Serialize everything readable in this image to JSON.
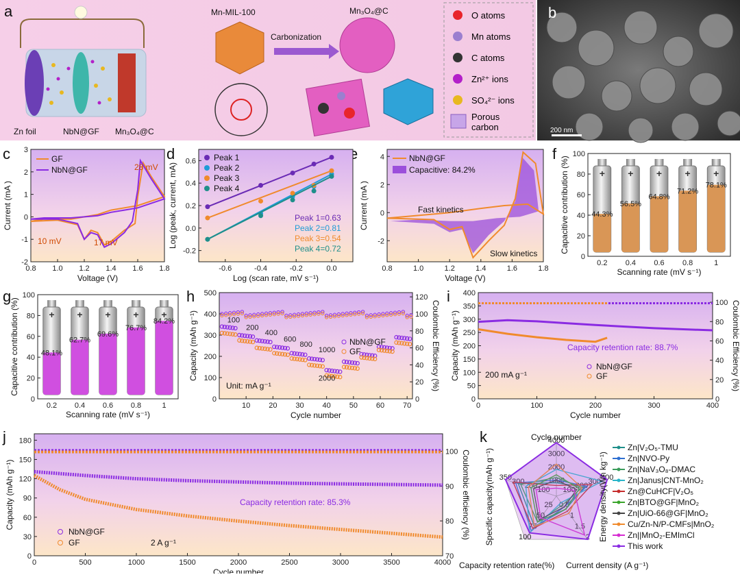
{
  "panel_labels": [
    "a",
    "b",
    "c",
    "d",
    "e",
    "f",
    "g",
    "h",
    "i",
    "j",
    "k"
  ],
  "colors": {
    "orange": "#f08a2c",
    "purple": "#8a2be2",
    "blue": "#1f9bd7",
    "teal": "#1f8f8a",
    "violet": "#6a2bb5",
    "bg_pink": "#f3c8e6",
    "bg_peach": "#fbe3c8"
  },
  "panel_a": {
    "labels": {
      "mof": "Mn-MIL-100",
      "arrow": "Carbonization",
      "product": "Mn₃O₄@C",
      "zn": "Zn foil",
      "nbn": "NbN@GF",
      "cathode": "Mn₃O₄@C"
    },
    "legend": [
      {
        "label": "O atoms",
        "color": "#e8242b",
        "icon": "circle"
      },
      {
        "label": "Mn atoms",
        "color": "#9b7fcf",
        "icon": "circle"
      },
      {
        "label": "C atoms",
        "color": "#333333",
        "icon": "circle"
      },
      {
        "label": "Zn²⁺ ions",
        "color": "#b320c9",
        "icon": "circle"
      },
      {
        "label": "SO₄²⁻ ions",
        "color": "#e8b820",
        "icon": "circle"
      },
      {
        "label": "Porous carbon",
        "color": "#c7a5e8",
        "icon": "square"
      }
    ]
  },
  "panel_b": {
    "scale": "200 nm"
  },
  "chart_data": [
    {
      "panel": "c",
      "type": "line",
      "xlabel": "Voltage (V)",
      "ylabel": "Current (mA )",
      "xlim": [
        0.8,
        1.8
      ],
      "ylim": [
        -2,
        3
      ],
      "xticks": [
        "0.8",
        "1.0",
        "1.2",
        "1.4",
        "1.6",
        "1.8"
      ],
      "yticks": [
        "-2",
        "-1",
        "0",
        "1",
        "2",
        "3"
      ],
      "annotations": [
        "28 mV",
        "10 mV",
        "17 mV"
      ],
      "series": [
        {
          "name": "GF",
          "color": "#f08a2c",
          "x": [
            0.8,
            1.0,
            1.15,
            1.2,
            1.25,
            1.3,
            1.35,
            1.4,
            1.5,
            1.58,
            1.6,
            1.64,
            1.7,
            1.8,
            1.75,
            1.6,
            1.5,
            1.4,
            1.3,
            1.1,
            0.9,
            0.8
          ],
          "y": [
            -0.2,
            -0.15,
            -0.35,
            -1.0,
            -0.6,
            -0.7,
            -1.25,
            -1.1,
            -0.6,
            -0.3,
            0.9,
            2.4,
            1.8,
            0.9,
            0.8,
            0.5,
            0.4,
            0.3,
            0.1,
            -0.1,
            -0.1,
            -0.2
          ]
        },
        {
          "name": "NbN@GF",
          "color": "#8a2be2",
          "x": [
            0.8,
            1.0,
            1.15,
            1.2,
            1.25,
            1.3,
            1.35,
            1.4,
            1.5,
            1.56,
            1.6,
            1.62,
            1.7,
            1.8,
            1.75,
            1.6,
            1.5,
            1.4,
            1.3,
            1.1,
            0.9,
            0.8
          ],
          "y": [
            -0.1,
            -0.1,
            -0.3,
            -1.0,
            -0.7,
            -0.8,
            -1.35,
            -1.2,
            -0.7,
            -0.2,
            1.2,
            2.5,
            1.7,
            0.8,
            0.7,
            0.4,
            0.3,
            0.2,
            0.05,
            -0.05,
            -0.05,
            -0.1
          ]
        }
      ]
    },
    {
      "panel": "d",
      "type": "scatter",
      "xlabel": "Log (scan rate, mV s⁻¹)",
      "ylabel": "Log (peak, current, mA)",
      "xlim": [
        -0.75,
        0.12
      ],
      "ylim": [
        -0.3,
        0.7
      ],
      "xticks": [
        "-0.6",
        "-0.4",
        "-0.2",
        "0.0"
      ],
      "yticks": [
        "-0.2",
        "0.0",
        "0.2",
        "0.4",
        "0.6"
      ],
      "series": [
        {
          "name": "Peak 1",
          "color": "#6a2bb5",
          "fit": "Peak 1=0.63",
          "x": [
            -0.7,
            -0.4,
            -0.22,
            -0.1,
            0.0
          ],
          "y": [
            0.19,
            0.38,
            0.49,
            0.57,
            0.63
          ]
        },
        {
          "name": "Peak 2",
          "color": "#1f9bd7",
          "fit": "Peak 2=0.81",
          "x": [
            -0.7,
            -0.4,
            -0.22,
            -0.1,
            0.0
          ],
          "y": [
            -0.1,
            0.13,
            0.28,
            0.37,
            0.48
          ]
        },
        {
          "name": "Peak 3",
          "color": "#f08a2c",
          "fit": "Peak 3=0.54",
          "x": [
            -0.7,
            -0.4,
            -0.22,
            -0.1,
            0.0
          ],
          "y": [
            0.09,
            0.24,
            0.31,
            0.38,
            0.51
          ]
        },
        {
          "name": "Peak 4",
          "color": "#1f8f8a",
          "fit": "Peak 4=0.72",
          "x": [
            -0.7,
            -0.4,
            -0.22,
            -0.1,
            0.0
          ],
          "y": [
            -0.1,
            0.11,
            0.25,
            0.33,
            0.46
          ]
        }
      ]
    },
    {
      "panel": "e",
      "type": "area",
      "xlabel": "Voltage (V)",
      "ylabel": "Current (mA )",
      "xlim": [
        0.8,
        1.8
      ],
      "ylim": [
        -3.5,
        4.5
      ],
      "xticks": [
        "0.8",
        "1.0",
        "1.2",
        "1.4",
        "1.6",
        "1.8"
      ],
      "yticks": [
        "-2",
        "0",
        "2",
        "4"
      ],
      "legend": [
        "NbN@GF",
        "Capacitive: 84.2%"
      ],
      "annotations": [
        "Fast kinetics",
        "Slow kinetics"
      ]
    },
    {
      "panel": "f",
      "type": "bar",
      "xlabel": "Scanning rate (mV s⁻¹)",
      "ylabel": "Capacitive contribution (%)",
      "ylim": [
        0,
        100
      ],
      "yticks": [
        "0",
        "20",
        "40",
        "60",
        "80",
        "100"
      ],
      "categories": [
        "0.2",
        "0.4",
        "0.6",
        "0.8",
        "1"
      ],
      "values": [
        44.3,
        56.5,
        64.8,
        71.2,
        78.1
      ],
      "labels": [
        "44.3%",
        "56.5%",
        "64.8%",
        "71.2%",
        "78.1%"
      ],
      "fill_color": "#d99656"
    },
    {
      "panel": "g",
      "type": "bar",
      "xlabel": "Scanning rate (mV s⁻¹)",
      "ylabel": "Capacitive contribution (%)",
      "ylim": [
        0,
        100
      ],
      "yticks": [
        "0",
        "20",
        "40",
        "60",
        "80",
        "100"
      ],
      "categories": [
        "0.2",
        "0.4",
        "0.6",
        "0.8",
        "1"
      ],
      "values": [
        48.1,
        62.7,
        69.6,
        76.7,
        84.2
      ],
      "labels": [
        "48.1%",
        "62.7%",
        "69.6%",
        "76.7%",
        "84.2%"
      ],
      "fill_color": "#d04fe0"
    },
    {
      "panel": "h",
      "type": "scatter",
      "xlabel": "Cycle number",
      "ylabel": "Capacity (mAh g⁻¹)",
      "y2label": "Coulombic Efficiency (%)",
      "xlim": [
        0,
        72
      ],
      "ylim": [
        0,
        500
      ],
      "y2lim": [
        0,
        125
      ],
      "xticks": [
        "10",
        "20",
        "30",
        "40",
        "50",
        "60",
        "70"
      ],
      "yticks": [
        "0",
        "100",
        "200",
        "300",
        "400",
        "500"
      ],
      "y2ticks": [
        "0",
        "20",
        "40",
        "60",
        "80",
        "100",
        "120"
      ],
      "rate_labels": [
        "100",
        "200",
        "400",
        "600",
        "800",
        "1000",
        "2000"
      ],
      "unit_label": "Unit: mA g⁻¹",
      "series": [
        {
          "name": "NbN@GF",
          "color": "#8a2be2",
          "step_values": [
            340,
            300,
            275,
            245,
            215,
            190,
            135,
            175,
            210,
            245,
            290
          ]
        },
        {
          "name": "GF",
          "color": "#f08a2c",
          "step_values": [
            310,
            275,
            240,
            215,
            190,
            160,
            110,
            150,
            195,
            230,
            265
          ]
        }
      ]
    },
    {
      "panel": "i",
      "type": "line",
      "xlabel": "Cycle number",
      "ylabel": "Capacity (mAh g⁻¹)",
      "y2label": "Coulombic Efficiency (%)",
      "xlim": [
        0,
        400
      ],
      "ylim": [
        0,
        400
      ],
      "y2lim": [
        0,
        110
      ],
      "xticks": [
        "0",
        "100",
        "200",
        "300",
        "400"
      ],
      "yticks": [
        "0",
        "50",
        "100",
        "150",
        "200",
        "250",
        "300",
        "350",
        "400"
      ],
      "y2ticks": [
        "0",
        "20",
        "40",
        "60",
        "80",
        "100"
      ],
      "current_label": "200 mA g⁻¹",
      "annotation": "Capacity retention rate: 88.7%",
      "series": [
        {
          "name": "NbN@GF",
          "color": "#8a2be2",
          "x": [
            0,
            50,
            100,
            150,
            200,
            250,
            300,
            350,
            400
          ],
          "y": [
            290,
            296,
            292,
            285,
            278,
            272,
            266,
            262,
            258
          ]
        },
        {
          "name": "GF",
          "color": "#f08a2c",
          "x": [
            0,
            50,
            100,
            150,
            200,
            220
          ],
          "y": [
            262,
            245,
            232,
            222,
            215,
            230
          ]
        }
      ]
    },
    {
      "panel": "j",
      "type": "line",
      "xlabel": "Cycle number",
      "ylabel": "Capacity (mAh g⁻¹)",
      "y2label": "Coulombic efficiency (%)",
      "xlim": [
        0,
        4000
      ],
      "ylim": [
        0,
        190
      ],
      "y2lim": [
        70,
        105
      ],
      "xticks": [
        "0",
        "500",
        "1000",
        "1500",
        "2000",
        "2500",
        "3000",
        "3500",
        "4000"
      ],
      "yticks": [
        "0",
        "30",
        "60",
        "90",
        "120",
        "150",
        "180"
      ],
      "y2ticks": [
        "70",
        "80",
        "90",
        "100"
      ],
      "current_label": "2 A g⁻¹",
      "annotation": "Capacity retention rate: 85.3%",
      "series": [
        {
          "name": "NbN@GF",
          "color": "#8a2be2",
          "x": [
            0,
            250,
            500,
            1000,
            1500,
            2000,
            2500,
            3000,
            3500,
            4000
          ],
          "y": [
            131,
            128,
            125,
            120,
            117,
            115,
            113,
            112,
            111,
            110
          ]
        },
        {
          "name": "GF",
          "color": "#f08a2c",
          "x": [
            0,
            250,
            500,
            1000,
            1500,
            2000,
            2500,
            3000,
            3500,
            4000
          ],
          "y": [
            125,
            103,
            88,
            72,
            62,
            54,
            47,
            41,
            35,
            29
          ]
        }
      ]
    },
    {
      "panel": "k",
      "type": "radar",
      "axes": [
        "Cycle number",
        "Energy density(Wh kg⁻¹)",
        "Current density (A g⁻¹)",
        "Capacity retention rate(%)",
        "Specific capacity(mAh g⁻¹)"
      ],
      "axis_ticks": [
        [
          "1000",
          "2000",
          "3000",
          "4000"
        ],
        [
          "100",
          "200",
          "300",
          "400"
        ],
        [
          "0.5",
          "1",
          "1.5",
          "2"
        ],
        [
          "25",
          "50",
          "75",
          "100"
        ],
        [
          "100",
          "200",
          "300",
          "350"
        ]
      ],
      "series": [
        {
          "name": "Zn|V₂O₅-TMU",
          "color": "#1f8f8a",
          "values": [
            0.25,
            0.55,
            0.3,
            0.7,
            0.75
          ]
        },
        {
          "name": "Zn|NVO-Py",
          "color": "#2e6fd1",
          "values": [
            0.3,
            0.6,
            0.25,
            0.8,
            0.8
          ]
        },
        {
          "name": "Zn|NaV₃O₈-DMAC",
          "color": "#3a9c5b",
          "values": [
            0.35,
            0.5,
            0.2,
            0.6,
            0.7
          ]
        },
        {
          "name": "Zn|Janus|CNT-MnO₂",
          "color": "#29b5c9",
          "values": [
            0.5,
            0.9,
            0.15,
            0.85,
            0.6
          ]
        },
        {
          "name": "Zn@CuHCF|V₂O₅",
          "color": "#c52b2b",
          "values": [
            0.2,
            0.7,
            0.35,
            0.75,
            0.85
          ]
        },
        {
          "name": "Zn|BTO@GF|MnO₂",
          "color": "#3aa52b",
          "values": [
            0.4,
            0.45,
            0.3,
            0.6,
            0.5
          ]
        },
        {
          "name": "Zn|UiO-66@GF|MnO₂",
          "color": "#444444",
          "values": [
            0.3,
            0.4,
            0.25,
            0.55,
            0.45
          ]
        },
        {
          "name": "Cu/Zn-N/P-CMFs|MnO₂",
          "color": "#f08a2c",
          "values": [
            0.6,
            0.5,
            0.4,
            0.7,
            0.55
          ]
        },
        {
          "name": "Zn||MnO₂-EMImCl",
          "color": "#d62bd1",
          "values": [
            0.15,
            0.35,
            0.9,
            0.5,
            0.4
          ]
        },
        {
          "name": "This work",
          "color": "#8a2be2",
          "values": [
            1.0,
            1.0,
            1.0,
            0.85,
            1.0
          ]
        }
      ]
    }
  ]
}
